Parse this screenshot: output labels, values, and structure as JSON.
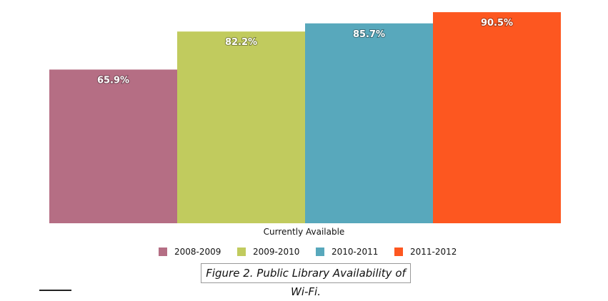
{
  "chart_data": {
    "type": "bar",
    "title": "",
    "xlabel": "Currently Available",
    "ylabel": "",
    "ylim": [
      0,
      100
    ],
    "categories": [
      "Currently Available"
    ],
    "series": [
      {
        "name": "2008-2009",
        "values": [
          65.9
        ],
        "label": "65.9%",
        "color": "#b56e84"
      },
      {
        "name": "2009-2010",
        "values": [
          82.2
        ],
        "label": "82.2%",
        "color": "#c1cb5e"
      },
      {
        "name": "2010-2011",
        "values": [
          85.7
        ],
        "label": "85.7%",
        "color": "#58a8bc"
      },
      {
        "name": "2011-2012",
        "values": [
          90.5
        ],
        "label": "90.5%",
        "color": "#fd5720"
      }
    ],
    "legend": "bottom",
    "grid": false
  },
  "caption": "Figure 2. Public Library Availability of Wi-Fi."
}
